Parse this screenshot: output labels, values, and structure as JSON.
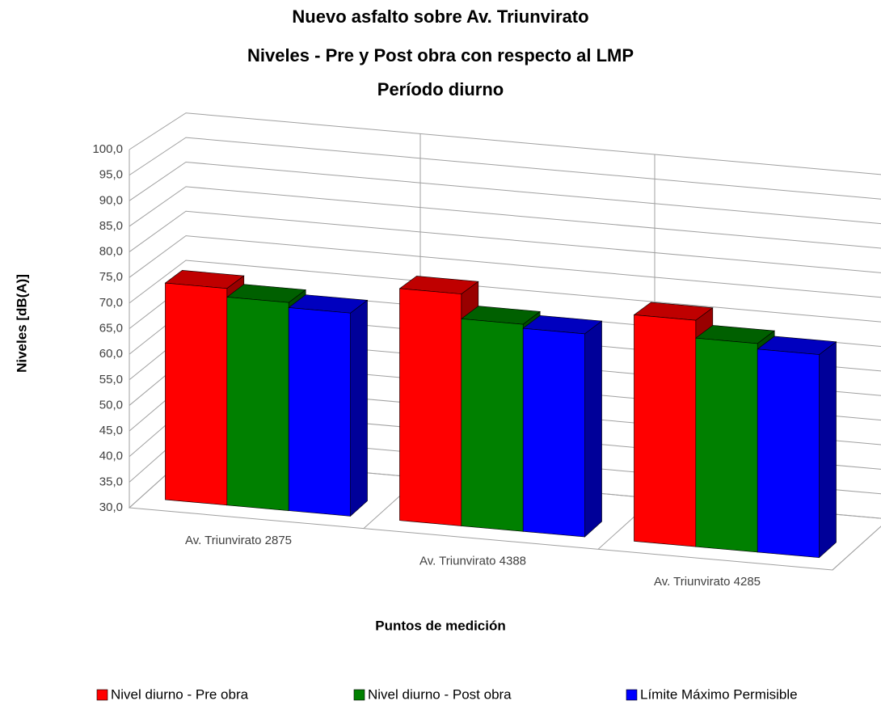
{
  "chart_data": {
    "type": "bar3d",
    "title": [
      "Nuevo asfalto sobre Av. Triunvirato",
      "Niveles - Pre y Post obra con respecto al LMP",
      "Período diurno"
    ],
    "x_label": "Puntos de medición",
    "y_label": "Niveles [dB(A)]",
    "categories": [
      "Av. Triunvirato 2875",
      "Av. Triunvirato 4388",
      "Av. Triunvirato 4285"
    ],
    "series": [
      {
        "name": "Nivel diurno - Pre obra",
        "color": "#ff0000",
        "values": [
          72.7,
          75.7,
          74.6
        ]
      },
      {
        "name": "Nivel diurno - Post obra",
        "color": "#008000",
        "values": [
          71.0,
          70.8,
          71.1
        ]
      },
      {
        "name": "Límite Máximo Permisible",
        "color": "#0000ff",
        "values": [
          70.0,
          70.0,
          70.0
        ]
      }
    ],
    "ylim": [
      30,
      100
    ],
    "yticks": [
      {
        "value": 30,
        "label": "30,0"
      },
      {
        "value": 35,
        "label": "35,0"
      },
      {
        "value": 40,
        "label": "40,0"
      },
      {
        "value": 45,
        "label": "45,0"
      },
      {
        "value": 50,
        "label": "50,0"
      },
      {
        "value": 55,
        "label": "55,0"
      },
      {
        "value": 60,
        "label": "60,0"
      },
      {
        "value": 65,
        "label": "65,0"
      },
      {
        "value": 70,
        "label": "70,0"
      },
      {
        "value": 75,
        "label": "75,0"
      },
      {
        "value": 80,
        "label": "80,0"
      },
      {
        "value": 85,
        "label": "85,0"
      },
      {
        "value": 90,
        "label": "90,0"
      },
      {
        "value": 95,
        "label": "95,0"
      },
      {
        "value": 100,
        "label": "100,0"
      }
    ],
    "grid": true,
    "legend": "bottom"
  }
}
